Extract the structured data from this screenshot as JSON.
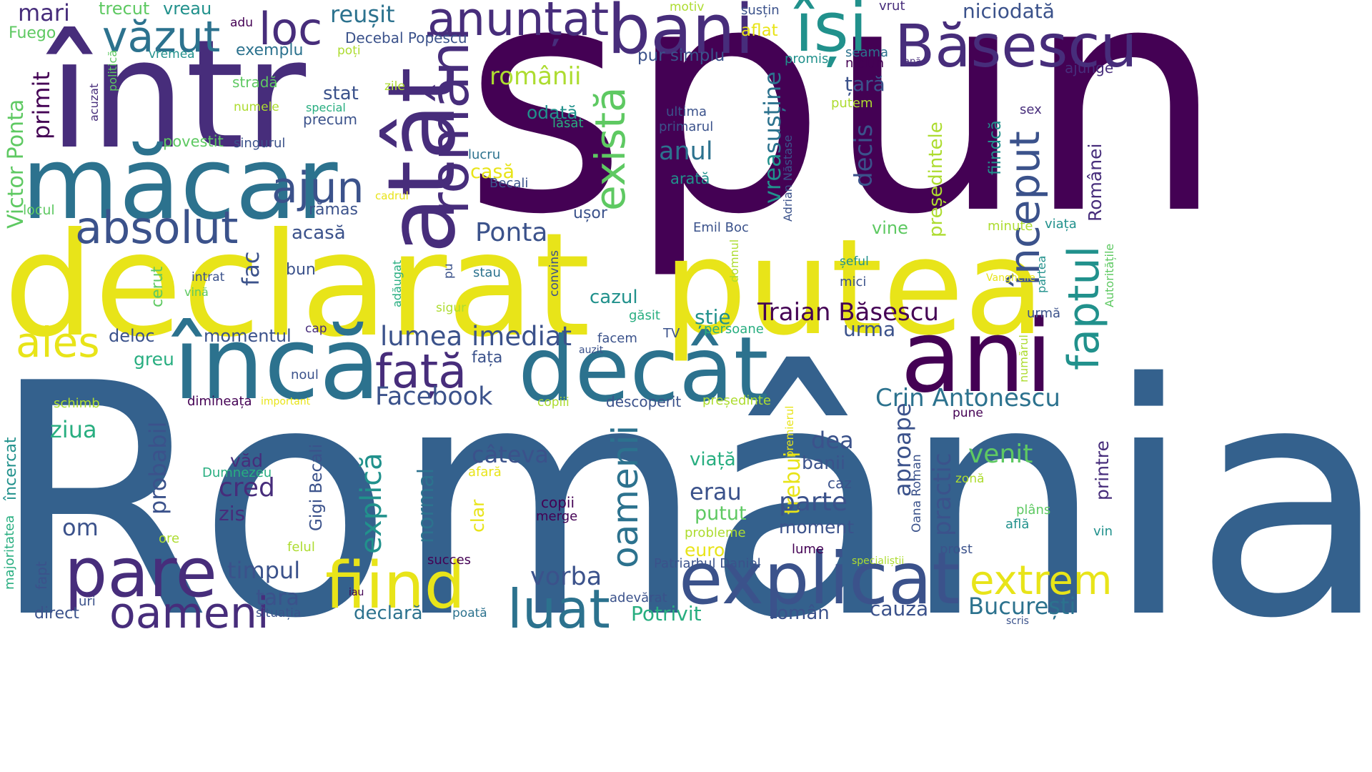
{
  "palette": {
    "dark_purple": "#440154",
    "indigo": "#472d7b",
    "blue_violet": "#3b528b",
    "steel_blue": "#2c728e",
    "teal": "#21918c",
    "green_teal": "#28ae80",
    "green": "#5ec962",
    "lime": "#addc30",
    "yellow": "#e8e419",
    "background": "#ffffff"
  },
  "words": [
    "spun",
    "România",
    "declarat",
    "putea",
    "într",
    "măcar",
    "atât",
    "bani",
    "Băsescu",
    "își",
    "anunțat",
    "loc",
    "văzut",
    "români",
    "absolut",
    "ajun",
    "există",
    "început",
    "faptul",
    "încă",
    "decât",
    "ani",
    "față",
    "pare",
    "fiind",
    "explicat",
    "oameni",
    "luat",
    "extrem",
    "oamenii",
    "explică",
    "alese",
    "Traian Băsescu",
    "Crin Antonescu",
    "Facebook",
    "lumea",
    "imediat",
    "Ponta",
    "Victor Ponta",
    "primit",
    "mari",
    "trecut",
    "vreau",
    "Fuego",
    "adu",
    "reușit",
    "Decebal Popescu",
    "niciodată",
    "motiv",
    "susțin",
    "vrut",
    "exemplu",
    "poți",
    "promis",
    "seama",
    "niciun",
    "apă",
    "ajunge",
    "românii",
    "pur simplu",
    "aflat",
    "vremea",
    "politică",
    "stradă",
    "zile",
    "special",
    "precum",
    "numele",
    "acuzat",
    "stat",
    "țară",
    "putem",
    "odată",
    "lăsat",
    "ultima",
    "primarul",
    "sex",
    "povestit",
    "singurul",
    "anul",
    "decis",
    "fiindcă",
    "Românei",
    "casă",
    "lucru",
    "Becali",
    "arată",
    "Adrian Năstase",
    "susține",
    "vrea",
    "președintele",
    "cadrul",
    "locul",
    "rămas",
    "ușor",
    "Emil Boc",
    "minute",
    "viața",
    "acasă",
    "vine",
    "Autoritățile",
    "bun",
    "fac",
    "intrat",
    "cerut",
    "vină",
    "stau",
    "convins",
    "pu",
    "adăugat",
    "sigur",
    "domnul",
    "partea",
    "șeful",
    "mici",
    "Vanghelie",
    "cazul",
    "găsit",
    "știe",
    "deloc",
    "momentul",
    "cap",
    "TV",
    "persoane",
    "urma",
    "urmă",
    "facem",
    "auzit",
    "numărul",
    "greu",
    "fața",
    "noul",
    "ziua",
    "probabil",
    "dimineața",
    "important",
    "copiii",
    "descoperit",
    "președinte",
    "premierul",
    "pune",
    "schimb",
    "câteva",
    "dea",
    "banii",
    "aproape",
    "practic",
    "venit",
    "printre",
    "încercat",
    "majoritatea",
    "Dumnezeu",
    "văd",
    "cred",
    "zis",
    "om",
    "Gigi Becali",
    "normal",
    "trebui",
    "viață",
    "afară",
    "caz",
    "zonă",
    "Oana Roman",
    "erau",
    "parte",
    "copii",
    "merge",
    "clar",
    "ore",
    "putut",
    "moment",
    "plâns",
    "află",
    "vin",
    "felul",
    "probleme",
    "euro",
    "lume",
    "prost",
    "succes",
    "specialiștii",
    "fapt",
    "timpul",
    "vorba",
    "adevărat",
    "Patriarhul Daniel",
    "iau",
    "uri",
    "țara",
    "direct",
    "situația",
    "declară",
    "poată",
    "Potrivit",
    "român",
    "cauza",
    "București",
    "scris",
    "ales"
  ]
}
